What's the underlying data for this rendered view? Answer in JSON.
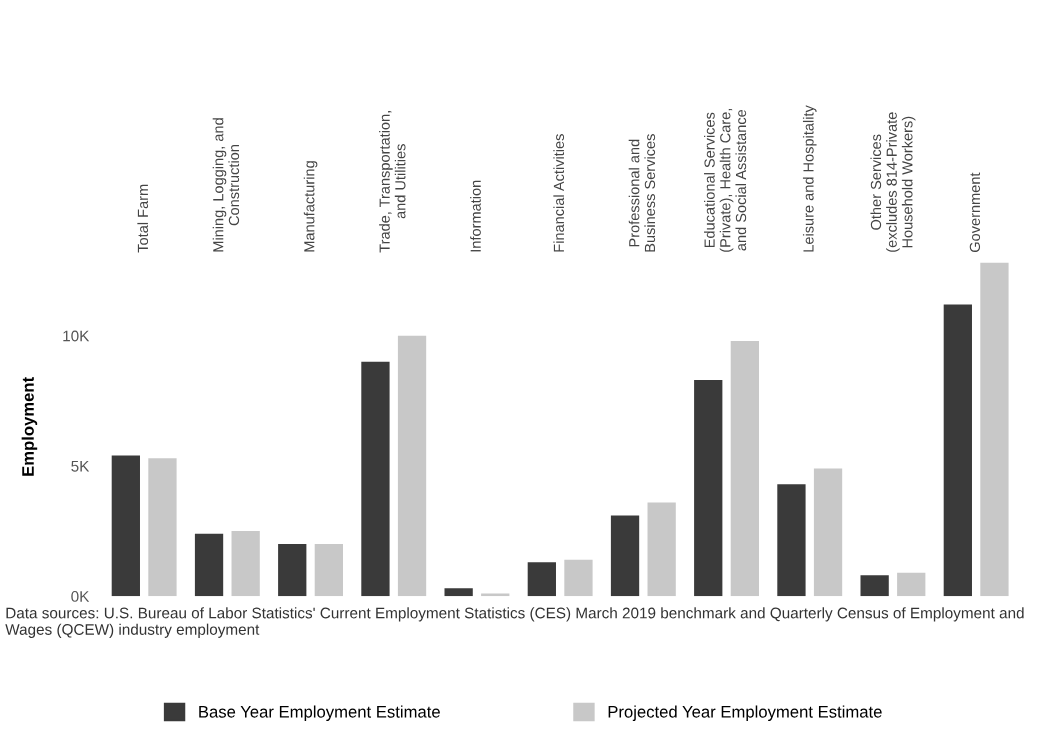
{
  "chart_data": {
    "type": "bar",
    "ylabel": "Employment",
    "categories": [
      "Total Farm",
      "Mining, Logging, and\nConstruction",
      "Manufacturing",
      "Trade, Transportation,\nand Utilities",
      "Information",
      "Financial Activities",
      "Professional and\nBusiness Services",
      "Educational Services\n(Private), Health Care,\nand Social Assistance",
      "Leisure and Hospitality",
      "Other Services\n(excludes 814-Private\nHousehold Workers)",
      "Government"
    ],
    "series": [
      {
        "name": "Base Year Employment Estimate",
        "color": "#3a3a3a",
        "values": [
          5.4,
          2.4,
          2.0,
          9.0,
          0.3,
          1.3,
          3.1,
          8.3,
          4.3,
          0.8,
          11.2
        ]
      },
      {
        "name": "Projected Year Employment Estimate",
        "color": "#c8c8c8",
        "values": [
          5.3,
          2.5,
          2.0,
          10.0,
          0.1,
          1.4,
          3.6,
          9.8,
          4.9,
          0.9,
          12.8
        ]
      }
    ],
    "ylim": [
      0,
      13
    ],
    "yticks": [
      {
        "value": 0,
        "label": "0K"
      },
      {
        "value": 5,
        "label": "5K"
      },
      {
        "value": 10,
        "label": "10K"
      }
    ],
    "grid": false,
    "legend": "bottom",
    "annotations": [
      "Data sources: U.S. Bureau of Labor Statistics' Current Employment Statistics (CES) March 2019 benchmark and Quarterly Census of Employment and Wages (QCEW) industry employment"
    ]
  }
}
